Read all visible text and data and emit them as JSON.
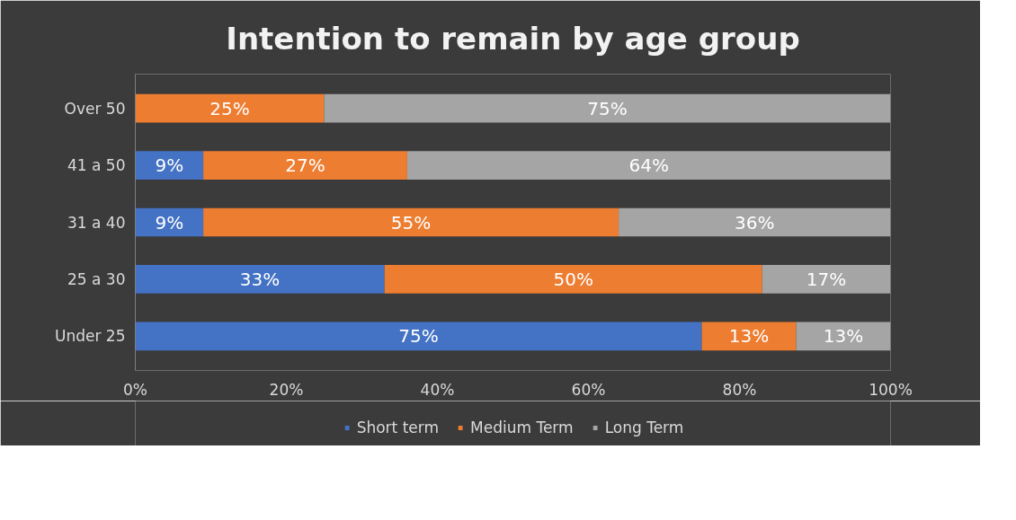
{
  "chart_data": {
    "type": "bar",
    "orientation": "horizontal",
    "stacked": true,
    "title": "Intention to remain by age group",
    "categories": [
      "Over 50",
      "41 a 50",
      "31 a 40",
      "25 a 30",
      "Under 25"
    ],
    "series": [
      {
        "name": "Short term",
        "color": "#4472c4",
        "values": [
          0,
          9,
          9,
          33,
          75
        ],
        "value_labels": [
          null,
          "9%",
          "9%",
          "33%",
          "75%"
        ]
      },
      {
        "name": "Medium Term",
        "color": "#ed7d31",
        "values": [
          25,
          27,
          55,
          50,
          12.5
        ],
        "value_labels": [
          "25%",
          "27%",
          "55%",
          "50%",
          "13%"
        ]
      },
      {
        "name": "Long Term",
        "color": "#a5a5a5",
        "values": [
          75,
          64,
          36,
          17,
          12.5
        ],
        "value_labels": [
          "75%",
          "64%",
          "36%",
          "17%",
          "13%"
        ]
      }
    ],
    "xlim": [
      0,
      100
    ],
    "xticks": [
      {
        "value": 0,
        "label": "0%"
      },
      {
        "value": 20,
        "label": "20%"
      },
      {
        "value": 40,
        "label": "40%"
      },
      {
        "value": 60,
        "label": "60%"
      },
      {
        "value": 80,
        "label": "80%"
      },
      {
        "value": 100,
        "label": "100%"
      }
    ],
    "grid": false,
    "legend": "bottom"
  }
}
